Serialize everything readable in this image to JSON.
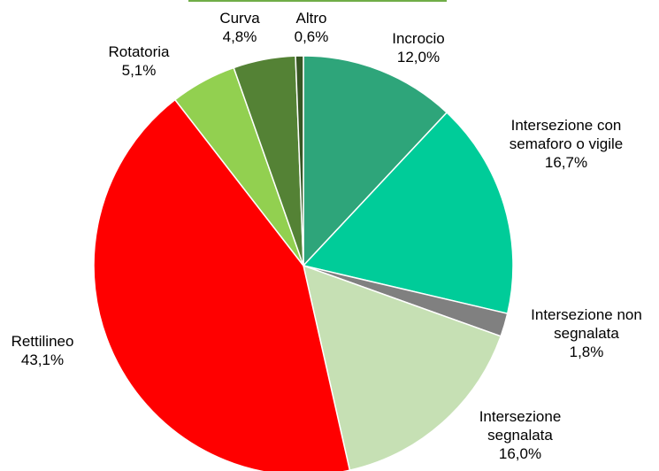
{
  "chart_data": {
    "type": "pie",
    "categories": [
      "Incrocio",
      "Intersezione con semaforo o vigile",
      "Intersezione non segnalata",
      "Intersezione segnalata",
      "Rettilineo",
      "Rotatoria",
      "Curva",
      "Altro"
    ],
    "values": [
      12.0,
      16.7,
      1.8,
      16.0,
      43.1,
      5.1,
      4.8,
      0.6
    ],
    "value_labels": [
      "12,0%",
      "16,7%",
      "1,8%",
      "16,0%",
      "43,1%",
      "5,1%",
      "4,8%",
      "0,6%"
    ],
    "colors": [
      "#2ea57a",
      "#00cc99",
      "#808080",
      "#c6e0b4",
      "#ff0000",
      "#92d050",
      "#548235",
      "#375623"
    ]
  }
}
